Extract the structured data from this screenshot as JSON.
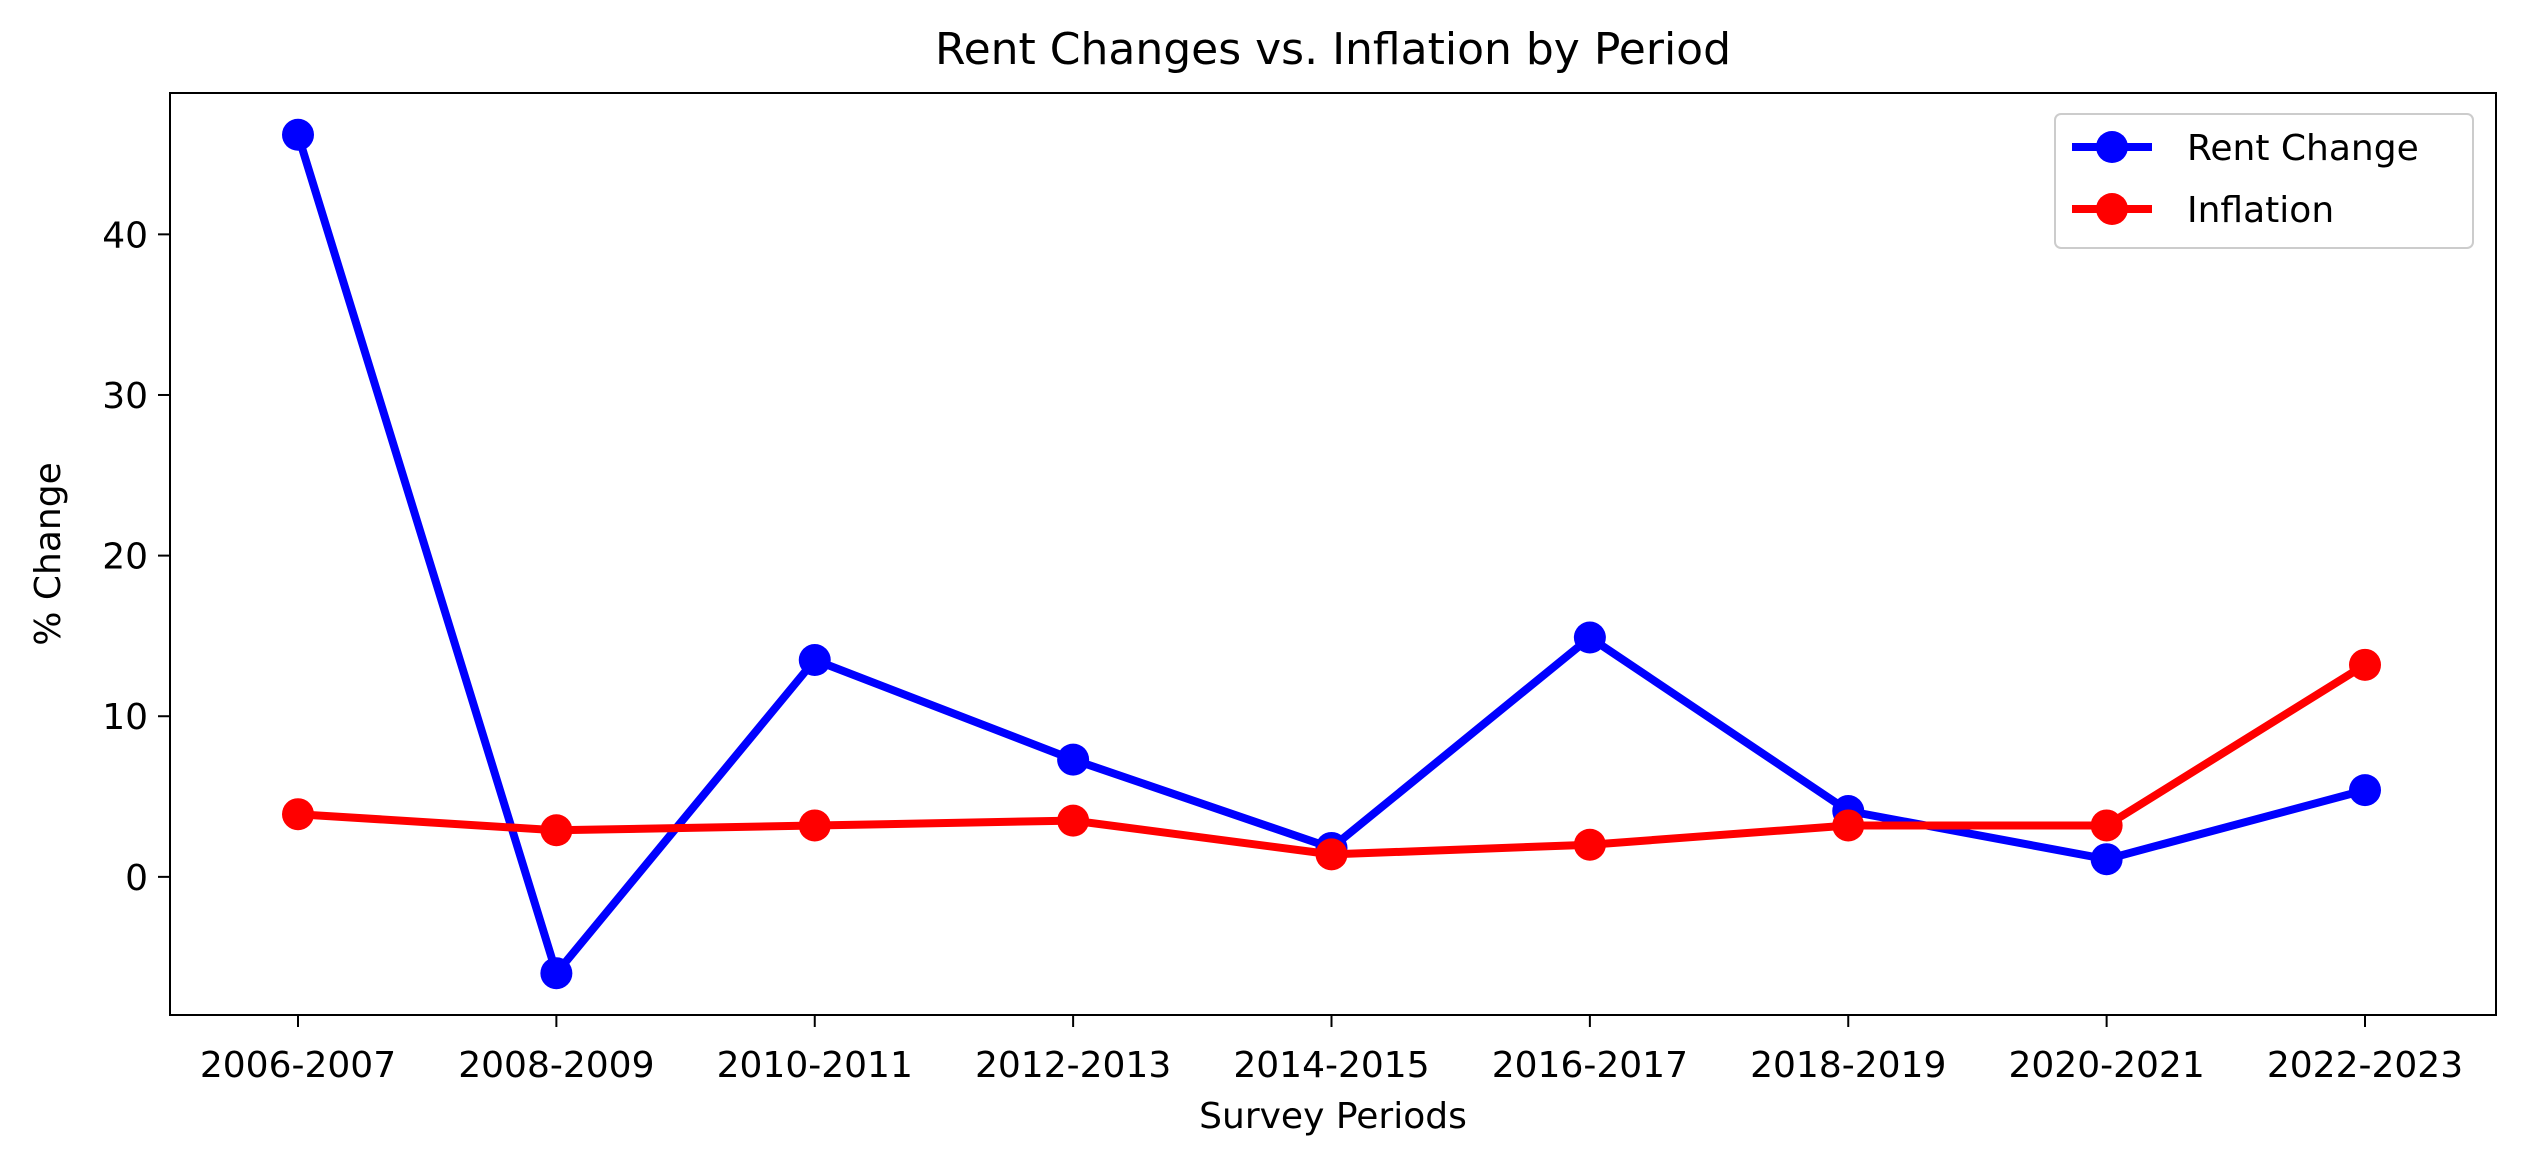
{
  "chart_data": {
    "type": "line",
    "title": "Rent Changes vs. Inflation by Period",
    "xlabel": "Survey Periods",
    "ylabel": "% Change",
    "categories": [
      "2006-2007",
      "2008-2009",
      "2010-2011",
      "2012-2013",
      "2014-2015",
      "2016-2017",
      "2018-2019",
      "2020-2021",
      "2022-2023"
    ],
    "series": [
      {
        "name": "Rent Change",
        "color": "#0000ff",
        "marker": "circle",
        "values": [
          46.2,
          -6.0,
          13.5,
          7.3,
          1.8,
          14.9,
          4.1,
          1.1,
          5.4
        ]
      },
      {
        "name": "Inflation",
        "color": "#ff0000",
        "marker": "circle",
        "values": [
          3.9,
          2.9,
          3.2,
          3.5,
          1.4,
          2.0,
          3.2,
          3.2,
          13.2
        ]
      }
    ],
    "ylim": [
      -8.6,
      48.8
    ],
    "yticks": [
      0,
      10,
      20,
      30,
      40
    ],
    "grid": false,
    "legend_position": "top-right"
  }
}
